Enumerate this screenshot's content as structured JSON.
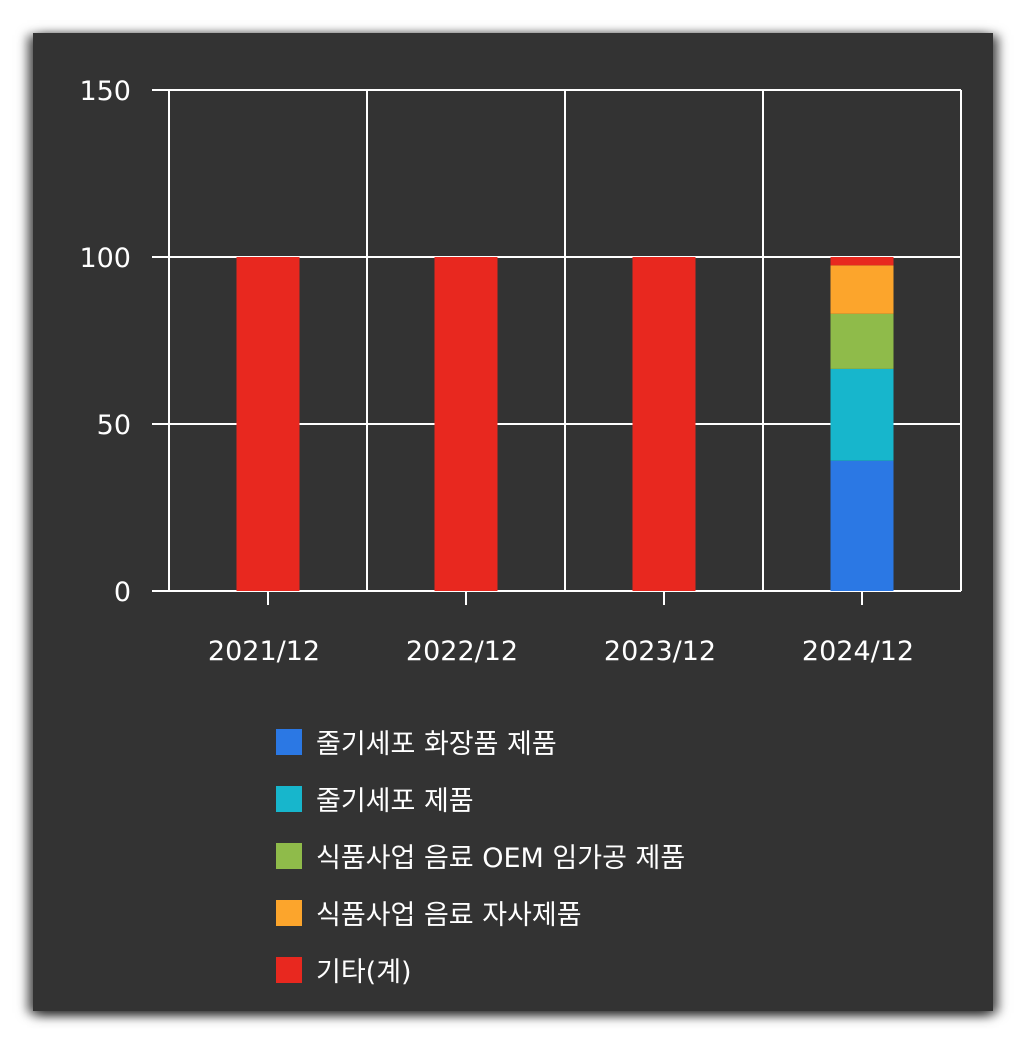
{
  "chart_data": {
    "type": "bar",
    "stacked": true,
    "categories": [
      "2021/12",
      "2022/12",
      "2023/12",
      "2024/12"
    ],
    "series": [
      {
        "name": "줄기세포 화장품 제품",
        "color": "#2b78e4",
        "values": [
          0,
          0,
          0,
          39
        ]
      },
      {
        "name": "줄기세포 제품",
        "color": "#17b6cc",
        "values": [
          0,
          0,
          0,
          27.5
        ]
      },
      {
        "name": "식품사업 음료 OEM 임가공 제품",
        "color": "#8fbb4a",
        "values": [
          0,
          0,
          0,
          16.5
        ]
      },
      {
        "name": "식품사업 음료 자사제품",
        "color": "#fca52c",
        "values": [
          0,
          0,
          0,
          14.5
        ]
      },
      {
        "name": "기타(계)",
        "color": "#e8281f",
        "values": [
          100,
          100,
          100,
          2.5
        ]
      }
    ],
    "yticks": [
      "0",
      "50",
      "100",
      "150"
    ],
    "ylim": [
      0,
      150
    ],
    "grid": true,
    "legend_position": "bottom"
  },
  "style": {
    "background": "#333333",
    "grid_color": "#ffffff",
    "text_color": "#ffffff"
  }
}
